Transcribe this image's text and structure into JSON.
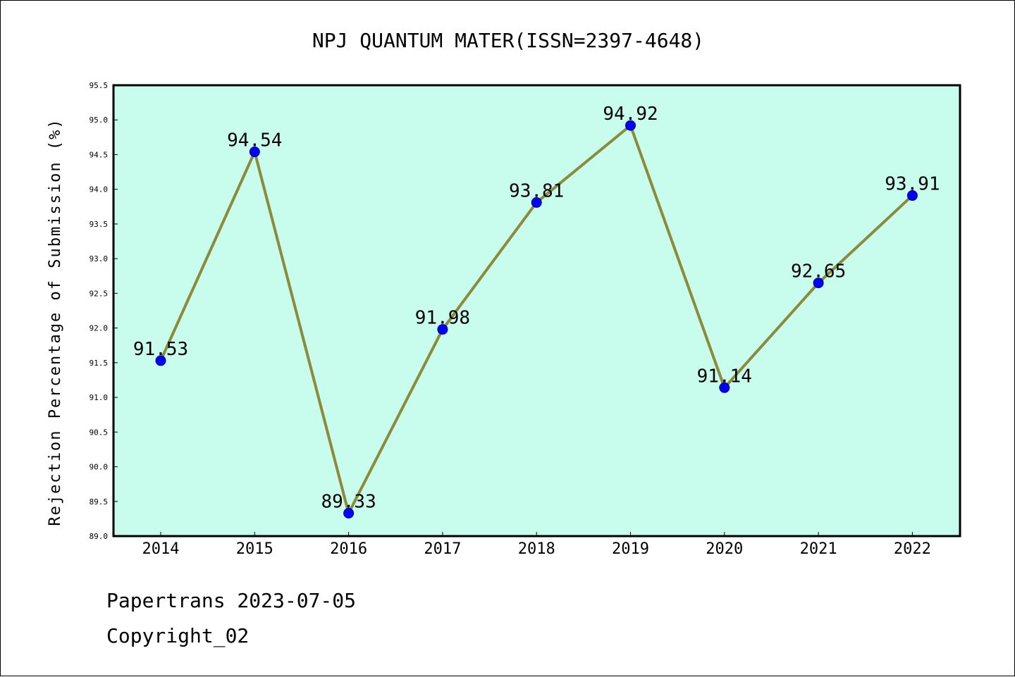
{
  "chart_data": {
    "type": "line",
    "title": "NPJ QUANTUM MATER(ISSN=2397-4648)",
    "xlabel": "",
    "ylabel": "Rejection Percentage of Submission (%)",
    "categories": [
      "2014",
      "2015",
      "2016",
      "2017",
      "2018",
      "2019",
      "2020",
      "2021",
      "2022"
    ],
    "values": [
      91.53,
      94.54,
      89.33,
      91.98,
      93.81,
      94.92,
      91.14,
      92.65,
      93.91
    ],
    "data_labels": [
      "91.53",
      "94.54",
      "89.33",
      "91.98",
      "93.81",
      "94.92",
      "91.14",
      "92.65",
      "93.91"
    ],
    "ylim": [
      89.0,
      95.5
    ],
    "yticks": [
      "89.0",
      "89.5",
      "90.0",
      "90.5",
      "91.0",
      "91.5",
      "92.0",
      "92.5",
      "93.0",
      "93.5",
      "94.0",
      "94.5",
      "95.0",
      "95.5"
    ],
    "grid": false,
    "legend": "none",
    "colors": {
      "plot_background": "#c8fcec",
      "line": "#8b8b3a",
      "marker": "#0000ff",
      "marker_edge": "#00008b"
    }
  },
  "footer": {
    "line1": "Papertrans 2023-07-05",
    "line2": "Copyright_02"
  }
}
